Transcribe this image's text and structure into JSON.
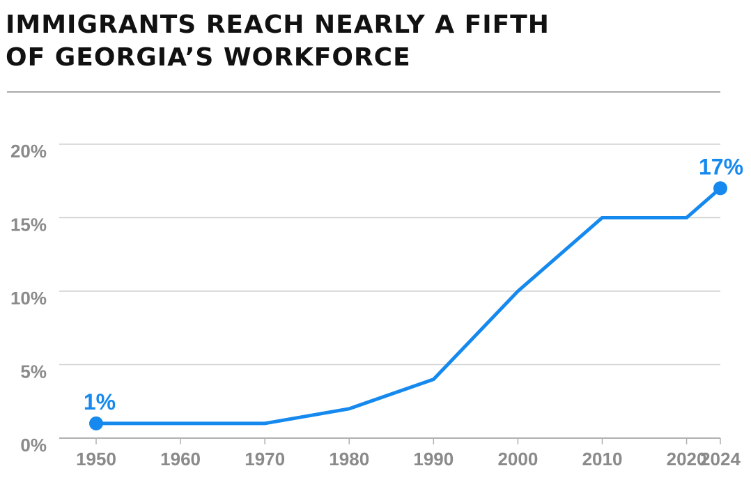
{
  "title_lines": [
    "IMMIGRANTS REACH NEARLY A FIFTH",
    "OF GEORGIA’S WORKFORCE"
  ],
  "colors": {
    "series": "#1589ee",
    "grid": "#d0d0d0",
    "tick": "#8a8a8a",
    "title": "#111111"
  },
  "chart_data": {
    "type": "line",
    "title": "IMMIGRANTS REACH NEARLY A FIFTH OF GEORGIA’S WORKFORCE",
    "xlabel": "",
    "ylabel": "",
    "x": [
      1950,
      1960,
      1970,
      1980,
      1990,
      2000,
      2010,
      2020,
      2024
    ],
    "xticks": [
      "1950",
      "1960",
      "1970",
      "1980",
      "1990",
      "2000",
      "2010",
      "2020",
      "2024"
    ],
    "series": [
      {
        "values": [
          1,
          1,
          1,
          2,
          4,
          10,
          15,
          15,
          17
        ]
      }
    ],
    "ylim": [
      0,
      20
    ],
    "yticks": [
      "0%",
      "5%",
      "10%",
      "15%",
      "20%"
    ],
    "data_labels": [
      {
        "x": 1950,
        "text": "1%"
      },
      {
        "x": 2024,
        "text": "17%"
      }
    ],
    "markers_at": [
      1950,
      2024
    ],
    "grid": true,
    "legend": "none"
  }
}
